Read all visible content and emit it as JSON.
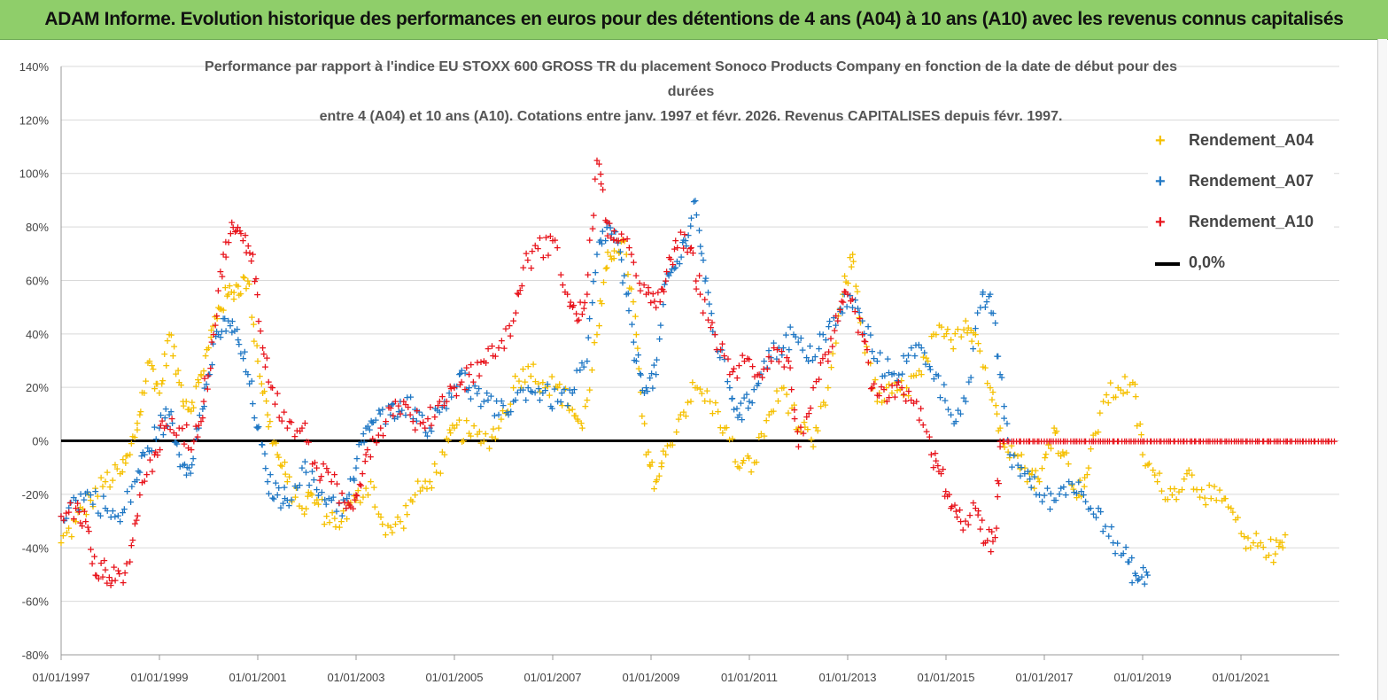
{
  "banner": {
    "title": "ADAM Informe. Evolution historique des performances en euros pour des détentions de 4 ans (A04) à 10 ans (A10) avec les revenus connus capitalisés"
  },
  "chart_data": {
    "type": "scatter",
    "title_lines": [
      "Performance par rapport à l'indice EU STOXX 600 GROSS TR  du placement Sonoco Products Company en fonction de la date de début pour des",
      "durées",
      "entre 4 (A04) et 10 ans (A10). Cotations entre janv. 1997 et févr. 2026. Revenus CAPITALISES depuis févr. 1997."
    ],
    "x_tick_labels": [
      "01/01/1997",
      "01/01/1999",
      "01/01/2001",
      "01/01/2003",
      "01/01/2005",
      "01/01/2007",
      "01/01/2009",
      "01/01/2011",
      "01/01/2013",
      "01/01/2015",
      "01/01/2017",
      "01/01/2019",
      "01/01/2021"
    ],
    "y_tick_labels": [
      "140%",
      "120%",
      "100%",
      "80%",
      "60%",
      "40%",
      "20%",
      "0%",
      "-20%",
      "-40%",
      "-60%",
      "-80%"
    ],
    "xlim": [
      1997.0,
      2023.0
    ],
    "ylim": [
      -80,
      140
    ],
    "grid": "horizontal",
    "legend_position": "top-right",
    "series": [
      {
        "name": "Rendement_A04",
        "color": "#f5c000",
        "points": [
          [
            1997.0,
            -38
          ],
          [
            1997.3,
            -30
          ],
          [
            1997.6,
            -22
          ],
          [
            1997.9,
            -15
          ],
          [
            1998.2,
            -12
          ],
          [
            1998.4,
            -5
          ],
          [
            1998.6,
            10
          ],
          [
            1998.8,
            30
          ],
          [
            1999.0,
            18
          ],
          [
            1999.2,
            40
          ],
          [
            1999.4,
            22
          ],
          [
            1999.6,
            12
          ],
          [
            1999.8,
            22
          ],
          [
            2000.0,
            35
          ],
          [
            2000.2,
            50
          ],
          [
            2000.4,
            55
          ],
          [
            2000.6,
            58
          ],
          [
            2000.8,
            60
          ],
          [
            2001.0,
            30
          ],
          [
            2001.2,
            10
          ],
          [
            2001.4,
            -5
          ],
          [
            2001.6,
            -15
          ],
          [
            2001.9,
            -25
          ],
          [
            2002.1,
            -20
          ],
          [
            2002.4,
            -28
          ],
          [
            2002.7,
            -30
          ],
          [
            2003.0,
            -22
          ],
          [
            2003.3,
            -15
          ],
          [
            2003.6,
            -35
          ],
          [
            2003.9,
            -30
          ],
          [
            2004.2,
            -20
          ],
          [
            2004.5,
            -15
          ],
          [
            2004.8,
            -5
          ],
          [
            2005.0,
            5
          ],
          [
            2005.3,
            3
          ],
          [
            2005.6,
            0
          ],
          [
            2005.9,
            5
          ],
          [
            2006.2,
            20
          ],
          [
            2006.5,
            28
          ],
          [
            2006.8,
            22
          ],
          [
            2007.1,
            20
          ],
          [
            2007.4,
            12
          ],
          [
            2007.6,
            5
          ],
          [
            2007.9,
            40
          ],
          [
            2008.1,
            65
          ],
          [
            2008.3,
            75
          ],
          [
            2008.5,
            70
          ],
          [
            2008.7,
            40
          ],
          [
            2008.9,
            -5
          ],
          [
            2009.1,
            -15
          ],
          [
            2009.3,
            -5
          ],
          [
            2009.6,
            10
          ],
          [
            2009.9,
            20
          ],
          [
            2010.2,
            15
          ],
          [
            2010.5,
            5
          ],
          [
            2010.8,
            -10
          ],
          [
            2011.1,
            -8
          ],
          [
            2011.4,
            10
          ],
          [
            2011.7,
            20
          ],
          [
            2012.0,
            5
          ],
          [
            2012.3,
            -2
          ],
          [
            2012.6,
            20
          ],
          [
            2012.9,
            55
          ],
          [
            2013.1,
            70
          ],
          [
            2013.3,
            40
          ],
          [
            2013.6,
            15
          ],
          [
            2013.9,
            18
          ],
          [
            2014.2,
            20
          ],
          [
            2014.5,
            25
          ],
          [
            2014.8,
            40
          ],
          [
            2015.1,
            38
          ],
          [
            2015.4,
            45
          ],
          [
            2015.6,
            40
          ],
          [
            2015.9,
            20
          ],
          [
            2016.1,
            5
          ],
          [
            2016.4,
            -5
          ],
          [
            2016.7,
            -12
          ],
          [
            2016.9,
            -15
          ],
          [
            2017.2,
            5
          ],
          [
            2017.4,
            -5
          ],
          [
            2017.7,
            -20
          ],
          [
            2017.9,
            -10
          ],
          [
            2018.2,
            15
          ],
          [
            2018.5,
            20
          ],
          [
            2018.8,
            22
          ],
          [
            2019.0,
            -5
          ],
          [
            2019.3,
            -15
          ],
          [
            2019.6,
            -20
          ],
          [
            2019.9,
            -12
          ],
          [
            2020.2,
            -18
          ],
          [
            2020.5,
            -22
          ],
          [
            2020.8,
            -25
          ],
          [
            2021.1,
            -40
          ],
          [
            2021.4,
            -38
          ],
          [
            2021.7,
            -42
          ],
          [
            2021.9,
            -35
          ]
        ]
      },
      {
        "name": "Rendement_A07",
        "color": "#1f77c4",
        "points": [
          [
            1997.0,
            -28
          ],
          [
            1997.3,
            -22
          ],
          [
            1997.6,
            -20
          ],
          [
            1997.9,
            -25
          ],
          [
            1998.2,
            -30
          ],
          [
            1998.5,
            -15
          ],
          [
            1998.7,
            -5
          ],
          [
            1999.0,
            5
          ],
          [
            1999.2,
            10
          ],
          [
            1999.4,
            -5
          ],
          [
            1999.6,
            -10
          ],
          [
            1999.8,
            5
          ],
          [
            2000.0,
            25
          ],
          [
            2000.2,
            40
          ],
          [
            2000.4,
            45
          ],
          [
            2000.6,
            38
          ],
          [
            2000.8,
            25
          ],
          [
            2001.0,
            5
          ],
          [
            2001.2,
            -15
          ],
          [
            2001.4,
            -20
          ],
          [
            2001.6,
            -22
          ],
          [
            2001.9,
            -10
          ],
          [
            2002.2,
            -18
          ],
          [
            2002.5,
            -22
          ],
          [
            2002.8,
            -25
          ],
          [
            2003.0,
            -10
          ],
          [
            2003.2,
            5
          ],
          [
            2003.4,
            8
          ],
          [
            2003.7,
            10
          ],
          [
            2003.9,
            15
          ],
          [
            2004.2,
            12
          ],
          [
            2004.5,
            5
          ],
          [
            2004.8,
            15
          ],
          [
            2005.1,
            25
          ],
          [
            2005.3,
            20
          ],
          [
            2005.6,
            15
          ],
          [
            2005.9,
            10
          ],
          [
            2006.2,
            15
          ],
          [
            2006.5,
            20
          ],
          [
            2006.8,
            18
          ],
          [
            2007.1,
            15
          ],
          [
            2007.4,
            18
          ],
          [
            2007.7,
            30
          ],
          [
            2007.9,
            70
          ],
          [
            2008.1,
            80
          ],
          [
            2008.3,
            75
          ],
          [
            2008.5,
            55
          ],
          [
            2008.7,
            30
          ],
          [
            2008.9,
            20
          ],
          [
            2009.1,
            25
          ],
          [
            2009.3,
            60
          ],
          [
            2009.5,
            65
          ],
          [
            2009.7,
            75
          ],
          [
            2009.9,
            90
          ],
          [
            2010.1,
            60
          ],
          [
            2010.3,
            40
          ],
          [
            2010.6,
            20
          ],
          [
            2010.8,
            10
          ],
          [
            2011.0,
            15
          ],
          [
            2011.3,
            30
          ],
          [
            2011.6,
            35
          ],
          [
            2011.9,
            40
          ],
          [
            2012.2,
            30
          ],
          [
            2012.5,
            40
          ],
          [
            2012.8,
            45
          ],
          [
            2013.0,
            55
          ],
          [
            2013.3,
            45
          ],
          [
            2013.6,
            30
          ],
          [
            2013.9,
            25
          ],
          [
            2014.2,
            30
          ],
          [
            2014.5,
            35
          ],
          [
            2014.8,
            25
          ],
          [
            2015.1,
            10
          ],
          [
            2015.4,
            15
          ],
          [
            2015.7,
            50
          ],
          [
            2015.9,
            55
          ],
          [
            2016.1,
            25
          ],
          [
            2016.3,
            -5
          ],
          [
            2016.6,
            -12
          ],
          [
            2016.9,
            -20
          ],
          [
            2017.2,
            -22
          ],
          [
            2017.5,
            -15
          ],
          [
            2017.8,
            -20
          ],
          [
            2018.1,
            -25
          ],
          [
            2018.4,
            -38
          ],
          [
            2018.7,
            -45
          ],
          [
            2018.9,
            -52
          ],
          [
            2019.1,
            -50
          ]
        ]
      },
      {
        "name": "Rendement_A10",
        "color": "#e8141c",
        "points": [
          [
            1997.0,
            -28
          ],
          [
            1997.3,
            -25
          ],
          [
            1997.5,
            -30
          ],
          [
            1997.7,
            -50
          ],
          [
            1997.9,
            -48
          ],
          [
            1998.1,
            -52
          ],
          [
            1998.4,
            -45
          ],
          [
            1998.6,
            -20
          ],
          [
            1998.9,
            -5
          ],
          [
            1999.1,
            5
          ],
          [
            1999.4,
            5
          ],
          [
            1999.7,
            0
          ],
          [
            1999.9,
            15
          ],
          [
            2000.1,
            40
          ],
          [
            2000.3,
            70
          ],
          [
            2000.5,
            80
          ],
          [
            2000.7,
            75
          ],
          [
            2000.9,
            70
          ],
          [
            2001.1,
            35
          ],
          [
            2001.3,
            20
          ],
          [
            2001.6,
            5
          ],
          [
            2001.9,
            5
          ],
          [
            2002.2,
            -10
          ],
          [
            2002.5,
            -15
          ],
          [
            2002.8,
            -25
          ],
          [
            2003.0,
            -20
          ],
          [
            2003.2,
            -5
          ],
          [
            2003.5,
            5
          ],
          [
            2003.8,
            15
          ],
          [
            2004.1,
            10
          ],
          [
            2004.4,
            5
          ],
          [
            2004.7,
            15
          ],
          [
            2005.0,
            20
          ],
          [
            2005.3,
            25
          ],
          [
            2005.6,
            30
          ],
          [
            2005.9,
            35
          ],
          [
            2006.2,
            45
          ],
          [
            2006.4,
            65
          ],
          [
            2006.7,
            72
          ],
          [
            2007.0,
            75
          ],
          [
            2007.3,
            55
          ],
          [
            2007.5,
            45
          ],
          [
            2007.7,
            55
          ],
          [
            2007.9,
            105
          ],
          [
            2008.1,
            82
          ],
          [
            2008.3,
            75
          ],
          [
            2008.6,
            70
          ],
          [
            2008.9,
            55
          ],
          [
            2009.1,
            50
          ],
          [
            2009.3,
            60
          ],
          [
            2009.5,
            75
          ],
          [
            2009.8,
            72
          ],
          [
            2010.0,
            55
          ],
          [
            2010.3,
            40
          ],
          [
            2010.6,
            25
          ],
          [
            2010.9,
            30
          ],
          [
            2011.2,
            25
          ],
          [
            2011.5,
            35
          ],
          [
            2011.8,
            30
          ],
          [
            2012.0,
            -2
          ],
          [
            2012.3,
            20
          ],
          [
            2012.6,
            30
          ],
          [
            2012.8,
            45
          ],
          [
            2013.0,
            55
          ],
          [
            2013.3,
            40
          ],
          [
            2013.5,
            20
          ],
          [
            2013.8,
            15
          ],
          [
            2014.1,
            20
          ],
          [
            2014.4,
            15
          ],
          [
            2014.7,
            -5
          ],
          [
            2014.9,
            -12
          ],
          [
            2015.1,
            -25
          ],
          [
            2015.3,
            -30
          ],
          [
            2015.6,
            -25
          ],
          [
            2015.8,
            -38
          ],
          [
            2016.0,
            -36
          ],
          [
            2016.1,
            0
          ],
          [
            2017.0,
            0
          ],
          [
            2018.0,
            0
          ],
          [
            2019.0,
            0
          ],
          [
            2020.0,
            0
          ],
          [
            2021.0,
            0
          ],
          [
            2022.0,
            0
          ],
          [
            2022.9,
            0
          ]
        ]
      }
    ],
    "reference_line": {
      "name": "0,0%",
      "y": 0,
      "color": "#000000"
    }
  }
}
